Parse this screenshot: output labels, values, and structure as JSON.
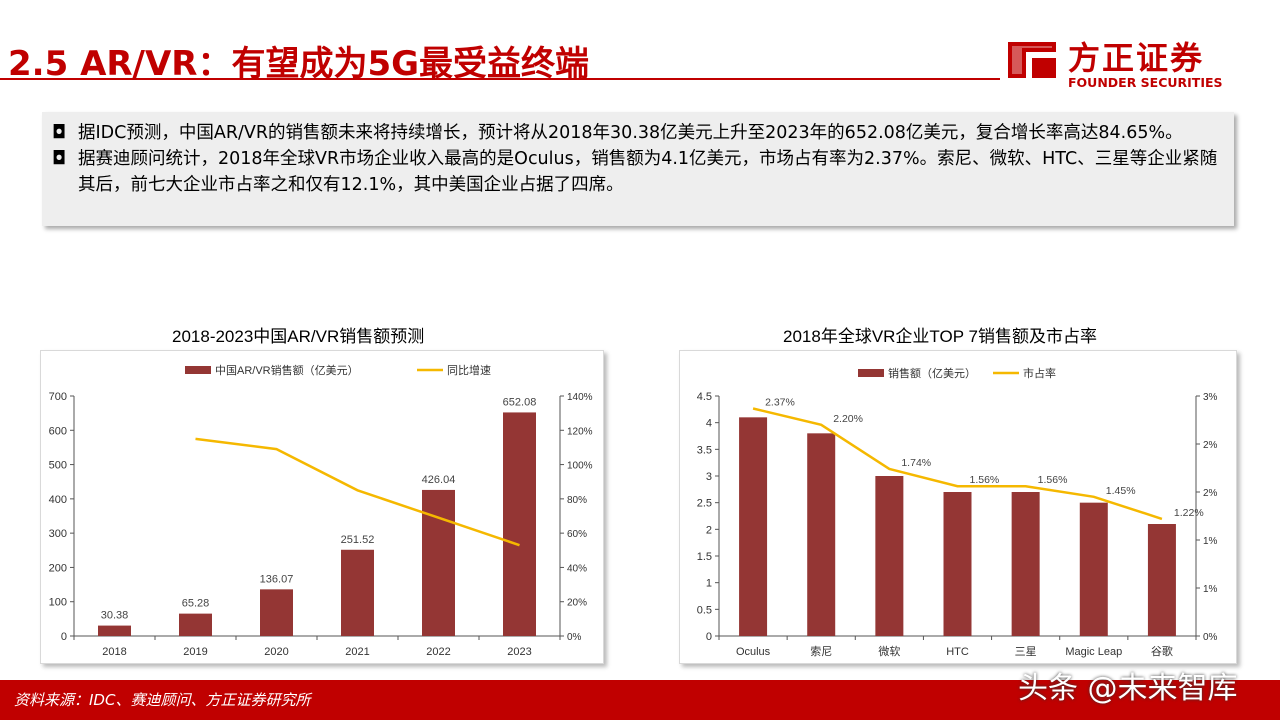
{
  "header": {
    "title": "2.5 AR/VR：有望成为5G最受益终端",
    "logo_cn": "方正证券",
    "logo_en": "FOUNDER SECURITIES"
  },
  "bullets": [
    {
      "mark": "◘",
      "text": "据IDC预测，中国AR/VR的销售额未来将持续增长，预计将从2018年30.38亿美元上升至2023年的652.08亿美元，复合增长率高达84.65%。"
    },
    {
      "mark": "◘",
      "text": "据赛迪顾问统计，2018年全球VR市场企业收入最高的是Oculus，销售额为4.1亿美元，市场占有率为2.37%。索尼、微软、HTC、三星等企业紧随其后，前七大企业市占率之和仅有12.1%，其中美国企业占据了四席。"
    }
  ],
  "chart_data": [
    {
      "type": "bar",
      "title": "2018-2023中国AR/VR销售额预测",
      "categories": [
        "2018",
        "2019",
        "2020",
        "2021",
        "2022",
        "2023"
      ],
      "series": [
        {
          "name": "中国AR/VR销售额（亿美元）",
          "type": "bar",
          "axis": "left",
          "values": [
            30.38,
            65.28,
            136.07,
            251.52,
            426.04,
            652.08
          ],
          "labels": [
            "30.38",
            "65.28",
            "136.07",
            "251.52",
            "426.04",
            "652.08"
          ]
        },
        {
          "name": "同比增速",
          "type": "line",
          "axis": "right",
          "values": [
            null,
            115,
            109,
            85,
            69,
            53
          ]
        }
      ],
      "y_left": {
        "ylim": [
          0,
          700
        ],
        "ticks": [
          "0",
          "100",
          "200",
          "300",
          "400",
          "500",
          "600",
          "700"
        ]
      },
      "y_right": {
        "ylim": [
          0,
          140
        ],
        "ticks": [
          "0%",
          "20%",
          "40%",
          "60%",
          "80%",
          "100%",
          "120%",
          "140%"
        ]
      },
      "legend": "top",
      "grid": false
    },
    {
      "type": "bar",
      "title": "2018年全球VR企业TOP 7销售额及市占率",
      "categories": [
        "Oculus",
        "索尼",
        "微软",
        "HTC",
        "三星",
        "Magic Leap",
        "谷歌"
      ],
      "series": [
        {
          "name": "销售额（亿美元）",
          "type": "bar",
          "axis": "left",
          "values": [
            4.1,
            3.8,
            3.0,
            2.7,
            2.7,
            2.5,
            2.1
          ]
        },
        {
          "name": "市占率",
          "type": "line",
          "axis": "right",
          "values": [
            2.37,
            2.2,
            1.74,
            1.56,
            1.56,
            1.45,
            1.22
          ],
          "labels": [
            "2.37%",
            "2.20%",
            "1.74%",
            "1.56%",
            "1.56%",
            "1.45%",
            "1.22%"
          ]
        }
      ],
      "y_left": {
        "ylim": [
          0,
          4.5
        ],
        "ticks": [
          "0",
          "0.5",
          "1",
          "1.5",
          "2",
          "2.5",
          "3",
          "3.5",
          "4",
          "4.5"
        ]
      },
      "y_right": {
        "ylim": [
          0,
          2.5
        ],
        "ticks": [
          "0%",
          "1%",
          "1%",
          "2%",
          "2%",
          "3%"
        ]
      },
      "legend": "top",
      "grid": false
    }
  ],
  "colors": {
    "bar": "#943634",
    "line": "#f5b800",
    "brand": "#c00000"
  },
  "footer": {
    "source": "资料来源：IDC、赛迪顾问、方正证券研究所",
    "watermark": "头条 @未来智库"
  }
}
